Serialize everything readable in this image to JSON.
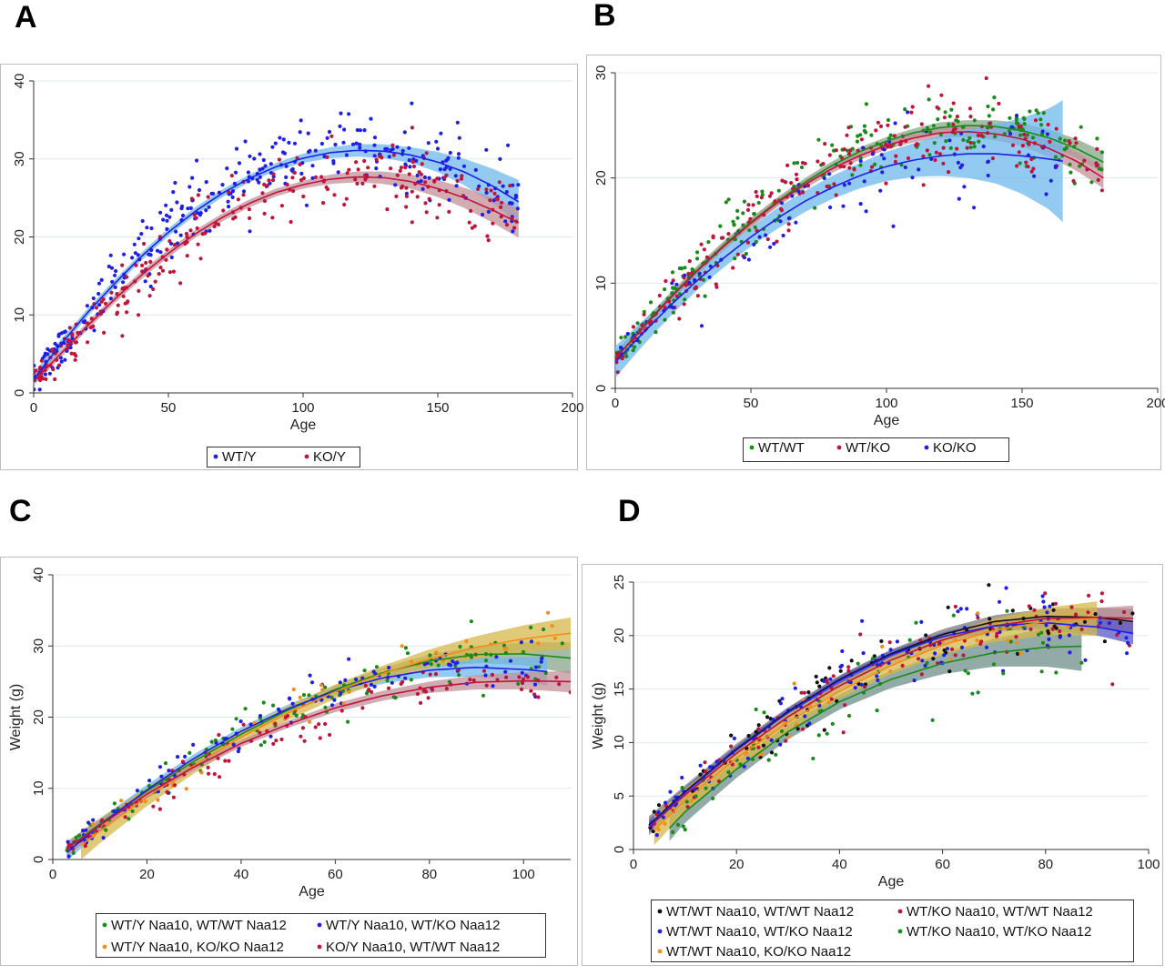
{
  "figure": {
    "panel_labels": [
      "A",
      "B",
      "C",
      "D"
    ]
  },
  "chart_data": [
    {
      "panel": "A",
      "type": "scatter",
      "title": "",
      "xlabel": "Age",
      "ylabel": "",
      "xlim": [
        0,
        200
      ],
      "ylim": [
        0,
        40
      ],
      "xticks": [
        0,
        50,
        100,
        150,
        200
      ],
      "yticks": [
        0,
        10,
        20,
        30,
        40
      ],
      "grid": true,
      "legend_position": "bottom",
      "legend_columns": 2,
      "series": [
        {
          "name": "WT/Y",
          "color": "#1f1fe6",
          "band_color": "#6fb8ec",
          "x": [
            0,
            10,
            20,
            30,
            40,
            50,
            60,
            70,
            80,
            90,
            100,
            110,
            120,
            130,
            140,
            150,
            160,
            170,
            180
          ],
          "fit": [
            1.8,
            6.2,
            10.3,
            14.0,
            17.5,
            20.6,
            23.3,
            25.6,
            27.5,
            29.0,
            30.1,
            30.8,
            31.1,
            31.0,
            30.5,
            29.6,
            28.3,
            26.6,
            24.5
          ],
          "ci": [
            0.8,
            0.6,
            0.5,
            0.5,
            0.5,
            0.5,
            0.5,
            0.5,
            0.5,
            0.5,
            0.6,
            0.7,
            0.8,
            0.9,
            1.0,
            1.3,
            1.7,
            2.2,
            2.8
          ],
          "x_range": [
            0,
            180
          ],
          "n_points": 300,
          "noise": 2.4
        },
        {
          "name": "KO/Y",
          "color": "#c0143c",
          "band_color": "#c2909a",
          "x": [
            0,
            10,
            20,
            30,
            40,
            50,
            60,
            70,
            80,
            90,
            100,
            110,
            120,
            130,
            140,
            150,
            160,
            170,
            180
          ],
          "fit": [
            1.5,
            5.0,
            8.6,
            12.0,
            15.1,
            17.9,
            20.4,
            22.5,
            24.3,
            25.7,
            26.7,
            27.4,
            27.7,
            27.6,
            27.1,
            26.2,
            25.0,
            23.5,
            21.8
          ],
          "ci": [
            0.5,
            0.5,
            0.5,
            0.5,
            0.5,
            0.5,
            0.5,
            0.5,
            0.5,
            0.5,
            0.5,
            0.6,
            0.7,
            0.8,
            0.9,
            1.1,
            1.3,
            1.6,
            1.9
          ],
          "x_range": [
            0,
            180
          ],
          "n_points": 250,
          "noise": 2.3
        }
      ]
    },
    {
      "panel": "B",
      "type": "scatter",
      "title": "",
      "xlabel": "Age",
      "ylabel": "",
      "xlim": [
        0,
        200
      ],
      "ylim": [
        0,
        30
      ],
      "xticks": [
        0,
        50,
        100,
        150,
        200
      ],
      "yticks": [
        0,
        10,
        20,
        30
      ],
      "grid": true,
      "legend_position": "bottom",
      "legend_columns": 3,
      "series": [
        {
          "name": "WT/WT",
          "color": "#1a8a1a",
          "band_color": "#8aa58a",
          "x": [
            0,
            10,
            20,
            30,
            40,
            50,
            60,
            70,
            80,
            90,
            100,
            110,
            120,
            130,
            140,
            150,
            160,
            170,
            180
          ],
          "fit": [
            2.8,
            5.8,
            8.6,
            11.2,
            13.6,
            15.8,
            17.8,
            19.6,
            21.2,
            22.5,
            23.5,
            24.3,
            24.8,
            25.0,
            24.9,
            24.5,
            23.8,
            22.8,
            21.5
          ],
          "ci": [
            0.6,
            0.5,
            0.4,
            0.4,
            0.4,
            0.4,
            0.4,
            0.4,
            0.4,
            0.4,
            0.4,
            0.4,
            0.5,
            0.5,
            0.6,
            0.7,
            0.8,
            0.9,
            1.0
          ],
          "x_range": [
            0,
            180
          ],
          "n_points": 230,
          "noise": 1.6
        },
        {
          "name": "WT/KO",
          "color": "#c0143c",
          "band_color": "#c2909a",
          "x": [
            0,
            10,
            20,
            30,
            40,
            50,
            60,
            70,
            80,
            90,
            100,
            110,
            120,
            130,
            140,
            150,
            160,
            170,
            180
          ],
          "fit": [
            2.8,
            5.7,
            8.5,
            11.1,
            13.5,
            15.7,
            17.7,
            19.4,
            20.9,
            22.1,
            23.1,
            23.8,
            24.3,
            24.4,
            24.2,
            23.7,
            22.8,
            21.6,
            20.0
          ],
          "ci": [
            0.6,
            0.5,
            0.4,
            0.4,
            0.4,
            0.4,
            0.4,
            0.4,
            0.4,
            0.4,
            0.4,
            0.4,
            0.5,
            0.5,
            0.6,
            0.7,
            0.8,
            0.9,
            1.0
          ],
          "x_range": [
            0,
            180
          ],
          "n_points": 220,
          "noise": 1.6
        },
        {
          "name": "KO/KO",
          "color": "#1f1fe6",
          "band_color": "#6fb8ec",
          "x": [
            0,
            10,
            20,
            30,
            40,
            50,
            60,
            70,
            80,
            90,
            100,
            110,
            120,
            130,
            140,
            150,
            160,
            165
          ],
          "fit": [
            2.5,
            5.2,
            7.8,
            10.2,
            12.4,
            14.4,
            16.2,
            17.8,
            19.1,
            20.2,
            21.1,
            21.7,
            22.1,
            22.3,
            22.3,
            22.1,
            21.8,
            21.6
          ],
          "ci": [
            1.5,
            1.2,
            1.0,
            0.9,
            0.9,
            0.9,
            1.0,
            1.0,
            1.1,
            1.2,
            1.4,
            1.6,
            1.9,
            2.3,
            2.8,
            3.6,
            4.8,
            5.8
          ],
          "x_range": [
            0,
            165
          ],
          "n_points": 90,
          "noise": 1.8
        }
      ]
    },
    {
      "panel": "C",
      "type": "scatter",
      "title": "",
      "xlabel": "Age",
      "ylabel": "Weight (g)",
      "xlim": [
        0,
        110
      ],
      "ylim": [
        0,
        40
      ],
      "xticks": [
        0,
        20,
        40,
        60,
        80,
        100
      ],
      "yticks": [
        0,
        10,
        20,
        30,
        40
      ],
      "grid": true,
      "legend_position": "bottom",
      "legend_columns": 2,
      "series": [
        {
          "name": "WT/Y Naa10, WT/WT Naa12",
          "color": "#1a8a1a",
          "band_color": "#8aa58a",
          "x": [
            3,
            10,
            20,
            30,
            40,
            50,
            60,
            70,
            80,
            90,
            100,
            110
          ],
          "fit": [
            1.5,
            5.0,
            9.6,
            13.8,
            17.6,
            21.0,
            23.9,
            26.2,
            27.9,
            28.8,
            28.9,
            28.3
          ],
          "ci": [
            1.0,
            0.8,
            0.6,
            0.5,
            0.5,
            0.5,
            0.6,
            0.7,
            0.9,
            1.2,
            1.6,
            2.2
          ],
          "x_range": [
            3,
            110
          ],
          "n_points": 110,
          "noise": 1.8
        },
        {
          "name": "WT/Y Naa10, WT/KO Naa12",
          "color": "#1f1fe6",
          "band_color": "#6fb8ec",
          "x": [
            3,
            10,
            20,
            30,
            40,
            50,
            60,
            70,
            80,
            90,
            100,
            105
          ],
          "fit": [
            1.0,
            4.8,
            9.8,
            14.2,
            18.0,
            21.2,
            23.7,
            25.5,
            26.6,
            27.0,
            26.7,
            26.4
          ],
          "ci": [
            1.2,
            0.9,
            0.7,
            0.6,
            0.6,
            0.6,
            0.7,
            0.8,
            1.0,
            1.3,
            1.7,
            2.0
          ],
          "x_range": [
            3,
            105
          ],
          "n_points": 110,
          "noise": 1.9
        },
        {
          "name": "WT/Y Naa10, KO/KO Naa12",
          "color": "#f28c1a",
          "band_color": "#d6b84a",
          "x": [
            6,
            10,
            20,
            30,
            40,
            50,
            60,
            70,
            80,
            90,
            100,
            110
          ],
          "fit": [
            2.0,
            4.0,
            8.8,
            13.2,
            17.2,
            20.6,
            23.6,
            26.1,
            28.2,
            29.8,
            31.0,
            31.8
          ],
          "ci": [
            2.0,
            1.7,
            1.3,
            1.1,
            1.0,
            1.0,
            1.0,
            1.1,
            1.3,
            1.6,
            1.9,
            2.2
          ],
          "x_range": [
            6,
            110
          ],
          "n_points": 40,
          "noise": 1.9
        },
        {
          "name": "KO/Y Naa10, WT/WT Naa12",
          "color": "#c0143c",
          "band_color": "#c2909a",
          "x": [
            3,
            10,
            20,
            30,
            40,
            50,
            60,
            70,
            80,
            90,
            100,
            110
          ],
          "fit": [
            1.5,
            4.8,
            9.2,
            13.0,
            16.3,
            19.0,
            21.3,
            23.0,
            24.2,
            24.9,
            25.1,
            25.0
          ],
          "ci": [
            1.0,
            0.8,
            0.6,
            0.5,
            0.5,
            0.5,
            0.6,
            0.7,
            0.8,
            1.0,
            1.2,
            1.5
          ],
          "x_range": [
            3,
            110
          ],
          "n_points": 110,
          "noise": 1.7
        }
      ]
    },
    {
      "panel": "D",
      "type": "scatter",
      "title": "",
      "xlabel": "Age",
      "ylabel": "Weight (g)",
      "xlim": [
        0,
        100
      ],
      "ylim": [
        0,
        25
      ],
      "xticks": [
        0,
        20,
        40,
        60,
        80,
        100
      ],
      "yticks": [
        0,
        5,
        10,
        15,
        20,
        25
      ],
      "grid": true,
      "legend_position": "bottom",
      "legend_columns": 2,
      "series": [
        {
          "name": "WT/WT Naa10, WT/WT Naa12",
          "color": "#111111",
          "band_color": "#7a7a7a",
          "x": [
            3,
            10,
            20,
            30,
            40,
            50,
            60,
            70,
            80,
            90,
            97
          ],
          "fit": [
            2.3,
            5.4,
            9.4,
            12.9,
            15.9,
            18.3,
            20.1,
            21.3,
            21.8,
            21.7,
            21.3
          ],
          "ci": [
            0.8,
            0.6,
            0.5,
            0.4,
            0.4,
            0.4,
            0.5,
            0.6,
            0.7,
            0.9,
            1.2
          ],
          "x_range": [
            3,
            97
          ],
          "n_points": 80,
          "noise": 1.6
        },
        {
          "name": "WT/KO Naa10, WT/WT Naa12",
          "color": "#c0143c",
          "band_color": "#c2909a",
          "x": [
            3,
            10,
            20,
            30,
            40,
            50,
            60,
            70,
            80,
            90,
            97
          ],
          "fit": [
            2.1,
            5.1,
            9.0,
            12.4,
            15.3,
            17.7,
            19.6,
            20.9,
            21.6,
            21.7,
            21.6
          ],
          "ci": [
            0.8,
            0.6,
            0.5,
            0.4,
            0.4,
            0.4,
            0.5,
            0.6,
            0.7,
            0.9,
            1.2
          ],
          "x_range": [
            3,
            97
          ],
          "n_points": 90,
          "noise": 1.6
        },
        {
          "name": "WT/WT Naa10, WT/KO Naa12",
          "color": "#1f1fe6",
          "band_color": "#5a5ac8",
          "x": [
            3,
            10,
            20,
            30,
            40,
            50,
            60,
            70,
            80,
            90,
            97
          ],
          "fit": [
            2.2,
            5.3,
            9.3,
            12.8,
            15.8,
            18.2,
            19.9,
            20.9,
            21.2,
            20.8,
            20.2
          ],
          "ci": [
            0.6,
            0.5,
            0.4,
            0.4,
            0.4,
            0.4,
            0.4,
            0.5,
            0.6,
            0.8,
            1.0
          ],
          "x_range": [
            3,
            97
          ],
          "n_points": 120,
          "noise": 1.7
        },
        {
          "name": "WT/KO Naa10, WT/KO Naa12",
          "color": "#1a8a1a",
          "band_color": "#6f8f8a",
          "x": [
            7,
            10,
            20,
            30,
            40,
            50,
            60,
            70,
            80,
            87
          ],
          "fit": [
            2.0,
            3.5,
            7.5,
            11.0,
            13.8,
            15.9,
            17.4,
            18.4,
            18.9,
            19.0
          ],
          "ci": [
            1.2,
            1.0,
            0.8,
            0.7,
            0.7,
            0.8,
            1.0,
            1.3,
            1.8,
            2.3
          ],
          "x_range": [
            7,
            87
          ],
          "n_points": 60,
          "noise": 1.8
        },
        {
          "name": "WT/WT Naa10, KO/KO Naa12",
          "color": "#f28c1a",
          "band_color": "#d6b84a",
          "x": [
            4,
            10,
            20,
            30,
            40,
            50,
            60,
            70,
            80,
            90
          ],
          "fit": [
            1.8,
            4.6,
            8.5,
            11.9,
            14.8,
            17.2,
            19.1,
            20.5,
            21.3,
            21.6
          ],
          "ci": [
            1.4,
            1.1,
            0.9,
            0.8,
            0.7,
            0.8,
            0.9,
            1.1,
            1.3,
            1.6
          ],
          "x_range": [
            4,
            90
          ],
          "n_points": 30,
          "noise": 1.7
        }
      ]
    }
  ]
}
